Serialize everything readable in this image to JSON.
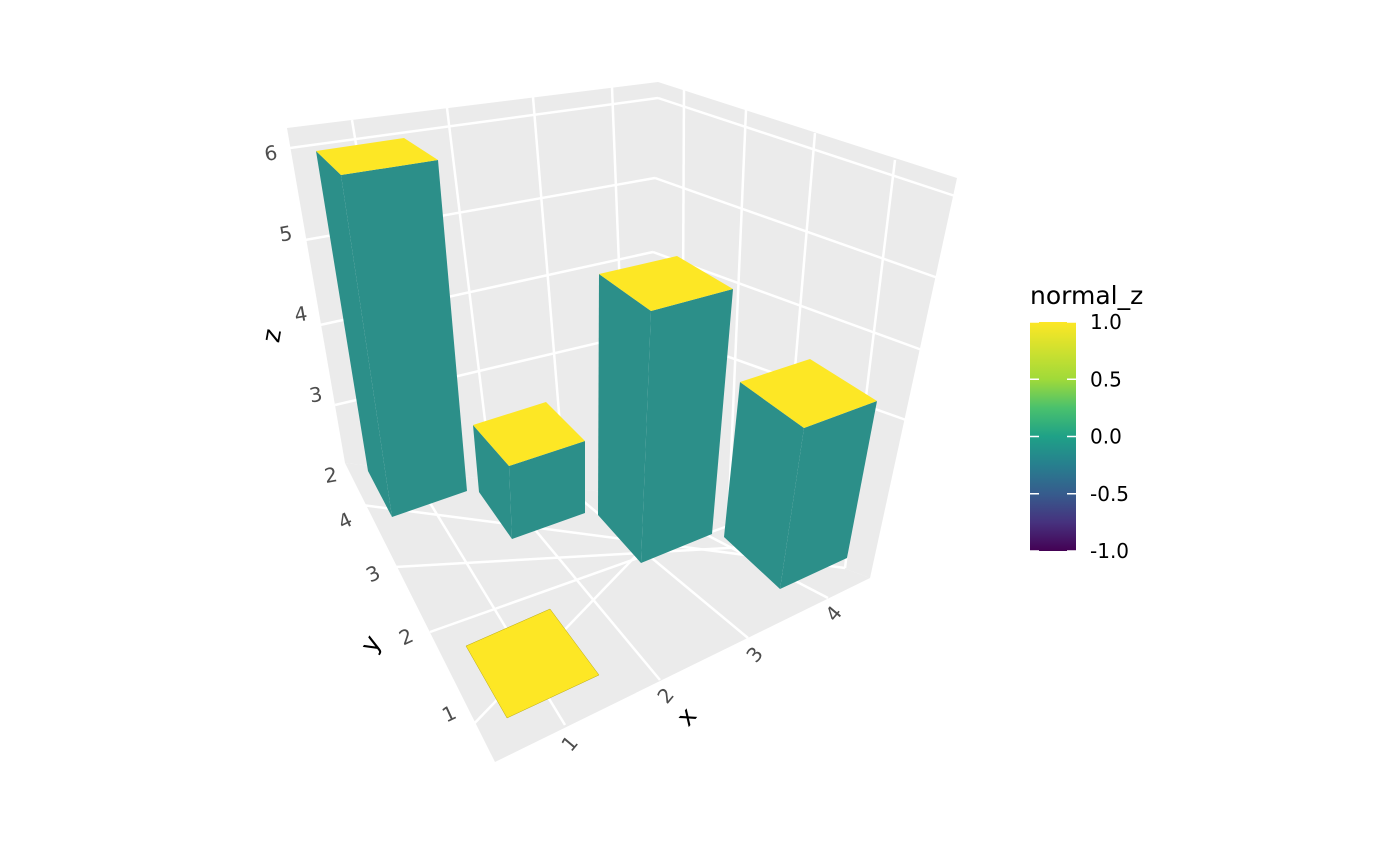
{
  "chart_data": {
    "type": "bar3d",
    "x_label": "x",
    "y_label": "y",
    "z_label": "z",
    "x_ticks": [
      "1",
      "2",
      "3",
      "4"
    ],
    "y_ticks": [
      "1",
      "2",
      "3",
      "4"
    ],
    "z_ticks": [
      "2",
      "3",
      "4",
      "5",
      "6"
    ],
    "bars": [
      {
        "x": 1,
        "y": 4,
        "z": 6
      },
      {
        "x": 2,
        "y": 4,
        "z": 3
      },
      {
        "x": 3,
        "y": 4,
        "z": 5
      },
      {
        "x": 4,
        "y": 4,
        "z": 4
      },
      {
        "x": 1,
        "y": 1,
        "z": 2
      }
    ],
    "legend": {
      "title": "normal_z",
      "labels": [
        "1.0",
        "0.5",
        "0.0",
        "-0.5",
        "-1.0"
      ],
      "values": [
        1.0,
        0.5,
        0.0,
        -0.5,
        -1.0
      ],
      "placement": "right"
    },
    "colors": {
      "panel": "#ebebeb",
      "side": "#2c8f89",
      "top": "#fde725",
      "grid": "#ffffff"
    }
  }
}
